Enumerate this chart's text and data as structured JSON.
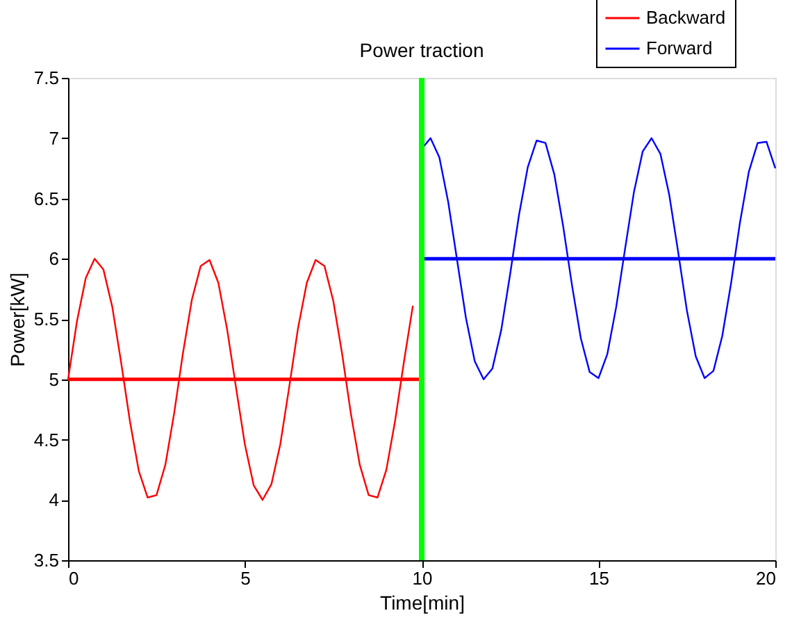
{
  "chart_data": {
    "type": "line",
    "title": "Power traction",
    "xlabel": "Time[min]",
    "ylabel": "Power[kW]",
    "xlim": [
      0,
      20
    ],
    "xticks": [
      0,
      5,
      10,
      15,
      20
    ],
    "ylim": [
      3.5,
      7.5
    ],
    "yticks": [
      3.5,
      4,
      4.5,
      5,
      5.5,
      6,
      6.5,
      7,
      7.5
    ],
    "grid": false,
    "legend": "top right",
    "marker": "none",
    "line_style": "solid",
    "ref_lines": [
      {
        "axis": "x",
        "value": 10,
        "color": "#00ff00"
      }
    ],
    "series": [
      {
        "name": "Backward",
        "color": "#ff0000",
        "x": [
          0,
          0.25,
          0.5,
          0.75,
          1,
          1.25,
          1.5,
          1.75,
          2,
          2.25,
          2.5,
          2.75,
          3,
          3.25,
          3.5,
          3.75,
          4,
          4.25,
          4.5,
          4.75,
          5,
          5.25,
          5.5,
          5.75,
          6,
          6.25,
          6.5,
          6.75,
          7,
          7.25,
          7.5,
          7.75,
          8,
          8.25,
          8.5,
          8.75,
          9,
          9.25,
          9.5,
          9.75
        ],
        "values": [
          5,
          5.48,
          5.84,
          6,
          5.91,
          5.6,
          5.14,
          4.65,
          4.24,
          4.02,
          4.04,
          4.29,
          4.72,
          5.22,
          5.66,
          5.94,
          5.99,
          5.8,
          5.41,
          4.93,
          4.46,
          4.12,
          4,
          4.13,
          4.46,
          4.93,
          5.42,
          5.8,
          5.99,
          5.94,
          5.65,
          5.21,
          4.71,
          4.29,
          4.04,
          4.02,
          4.25,
          4.66,
          5.15,
          5.61
        ]
      },
      {
        "name": "Forward",
        "color": "#0000ff",
        "x": [
          10,
          10.25,
          10.5,
          10.75,
          11,
          11.25,
          11.5,
          11.75,
          12,
          12.25,
          12.5,
          12.75,
          13,
          13.25,
          13.5,
          13.75,
          14,
          14.25,
          14.5,
          14.75,
          15,
          15.25,
          15.5,
          15.75,
          16,
          16.25,
          16.5,
          16.75,
          17,
          17.25,
          17.5,
          17.75,
          18,
          18.25,
          18.5,
          18.75,
          19,
          19.25,
          19.5,
          19.75,
          20
        ],
        "values": [
          6.91,
          7,
          6.84,
          6.47,
          5.99,
          5.51,
          5.15,
          5,
          5.09,
          5.41,
          5.87,
          6.36,
          6.76,
          6.98,
          6.96,
          6.7,
          6.27,
          5.78,
          5.34,
          5.06,
          5.01,
          5.21,
          5.6,
          6.08,
          6.55,
          6.89,
          7,
          6.87,
          6.53,
          6.06,
          5.57,
          5.19,
          5.01,
          5.07,
          5.36,
          5.8,
          6.3,
          6.72,
          6.96,
          6.97,
          6.75
        ]
      },
      {
        "color": "#ff0000",
        "x": [
          0,
          10
        ],
        "values": [
          5,
          5
        ]
      },
      {
        "color": "#0000ff",
        "x": [
          10,
          20
        ],
        "values": [
          6,
          6
        ]
      }
    ]
  }
}
